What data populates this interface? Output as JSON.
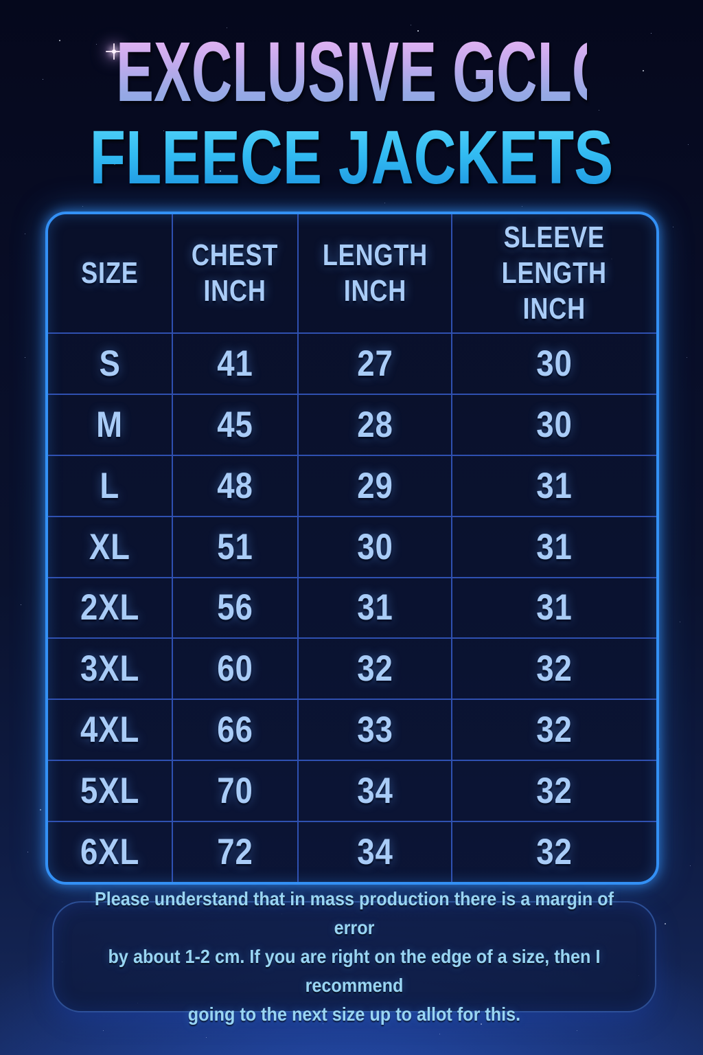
{
  "title": {
    "line1": "EXCLUSIVE GCLC",
    "line2": "FLEECE JACKETS"
  },
  "chart_data": {
    "type": "table",
    "title": "EXCLUSIVE GCLC FLEECE JACKETS",
    "columns": [
      "SIZE",
      "CHEST\nINCH",
      "LENGTH\nINCH",
      "SLEEVE\nLENGTH INCH"
    ],
    "rows": [
      [
        "S",
        "41",
        "27",
        "30"
      ],
      [
        "M",
        "45",
        "28",
        "30"
      ],
      [
        "L",
        "48",
        "29",
        "31"
      ],
      [
        "XL",
        "51",
        "30",
        "31"
      ],
      [
        "2XL",
        "56",
        "31",
        "31"
      ],
      [
        "3XL",
        "60",
        "32",
        "32"
      ],
      [
        "4XL",
        "66",
        "33",
        "32"
      ],
      [
        "5XL",
        "70",
        "34",
        "32"
      ],
      [
        "6XL",
        "72",
        "34",
        "32"
      ]
    ]
  },
  "note": "Please understand that in mass production there is a margin of error\nby about 1-2 cm. If you are right on the edge of a size, then I recommend\ngoing to the next size up to allot for this.",
  "colors": {
    "background_top": "#05081c",
    "background_bottom": "#16295c",
    "title_line1_top": "#ecb6f4",
    "title_line1_bottom": "#87a6e2",
    "title_line2_top": "#55d4f9",
    "title_line2_bottom": "#1d93df",
    "table_border": "#3390f5",
    "grid_line": "#365cc8",
    "cell_text": "#a9ccf7",
    "note_text": "#99d5f3"
  }
}
